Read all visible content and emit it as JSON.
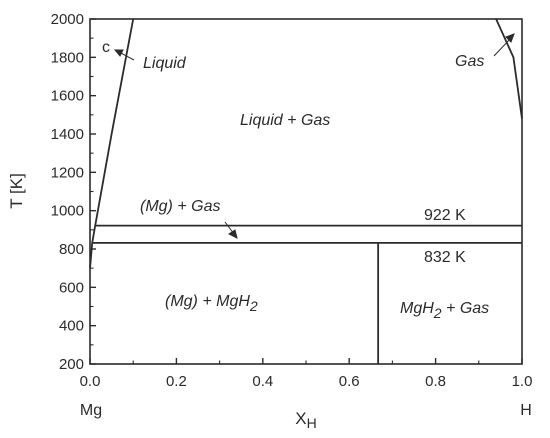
{
  "diagram": {
    "type": "phase-diagram",
    "x_axis": {
      "title": "X",
      "title_subscript": "H",
      "range": [
        0.0,
        1.0
      ],
      "ticks": [
        "0.0",
        "0.2",
        "0.4",
        "0.6",
        "0.8",
        "1.0"
      ],
      "left_end_label": "Mg",
      "right_end_label": "H"
    },
    "y_axis": {
      "title": "T [K]",
      "range": [
        200,
        2000
      ],
      "ticks": [
        "200",
        "400",
        "600",
        "800",
        "1000",
        "1200",
        "1400",
        "1600",
        "1800",
        "2000"
      ]
    },
    "isotherms": [
      {
        "label": "922 K",
        "T": 922
      },
      {
        "label": "832 K",
        "T": 832
      }
    ],
    "mgh2_composition": 0.667,
    "regions": {
      "liquid": "Liquid",
      "gas": "Gas",
      "liquid_gas": "Liquid + Gas",
      "mg_gas": "(Mg) + Gas",
      "mg_mgh2_prefix": "(Mg) + MgH",
      "mg_mgh2_sub": "2",
      "mgh2_gas_prefix": "MgH",
      "mgh2_gas_sub": "2",
      "mgh2_gas_suffix": " + Gas",
      "c_marker": "c"
    },
    "phase_boundaries": {
      "liquidus_left": [
        [
          0.0,
          700
        ],
        [
          0.005,
          832
        ],
        [
          0.012,
          922
        ],
        [
          0.05,
          1400
        ],
        [
          0.1,
          2000
        ]
      ],
      "gas_boundary_right": [
        [
          0.94,
          2000
        ],
        [
          0.98,
          1800
        ],
        [
          1.0,
          1480
        ]
      ]
    },
    "colors": {
      "line": "#2b2b2b",
      "text": "#2b2b2b",
      "background": "#ffffff"
    }
  }
}
